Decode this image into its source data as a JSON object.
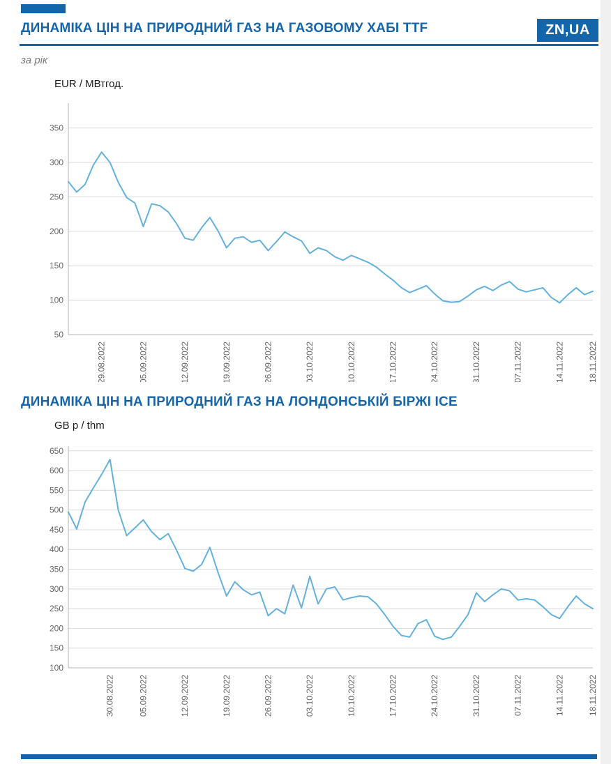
{
  "brand": {
    "logo_text": "ZN,UA",
    "accent_color": "#1565ab",
    "grid_color": "#d9d9d9",
    "axis_color": "#b3b3b3",
    "tick_text_color": "#666666"
  },
  "header": {
    "title": "ДИНАМІКА ЦІН НА ПРИРОДНИЙ ГАЗ НА ГАЗОВОМУ ХАБІ TTF",
    "subtitle": "за рік"
  },
  "section2": {
    "title": "ДИНАМІКА ЦІН НА ПРИРОДНИЙ ГАЗ НА ЛОНДОНСЬКІЙ БІРЖІ ICE"
  },
  "chart_data": [
    {
      "type": "line",
      "title": "ДИНАМІКА ЦІН НА ПРИРОДНИЙ ГАЗ НА ГАЗОВОМУ ХАБІ TTF",
      "subtitle": "за рік",
      "ylabel": "EUR / МВтгод.",
      "xlabel": "",
      "ylim": [
        50,
        386
      ],
      "yticks": [
        50,
        100,
        150,
        200,
        250,
        300,
        350
      ],
      "grid": true,
      "legend": "none",
      "line_color": "#63b1dc",
      "x_tick_labels": [
        "29.08.2022",
        "05.09.2022",
        "12.09.2022",
        "19.09.2022",
        "26.09.2022",
        "03.10.2022",
        "10.10.2022",
        "17.10.2022",
        "24.10.2022",
        "31.10.2022",
        "07.11.2022",
        "14.11.2022",
        "18.11.2022"
      ],
      "x_tick_indices": [
        4,
        9,
        14,
        19,
        24,
        29,
        34,
        39,
        44,
        49,
        54,
        59,
        63
      ],
      "values": [
        272,
        257,
        268,
        296,
        315,
        300,
        271,
        249,
        241,
        207,
        240,
        237,
        228,
        211,
        190,
        187,
        205,
        220,
        200,
        176,
        190,
        192,
        184,
        187,
        172,
        185,
        199,
        192,
        186,
        168,
        176,
        172,
        163,
        158,
        165,
        160,
        155,
        148,
        138,
        129,
        118,
        111,
        116,
        121,
        109,
        99,
        97,
        98,
        106,
        115,
        120,
        114,
        122,
        127,
        116,
        112,
        115,
        118,
        104,
        96,
        108,
        118,
        108,
        113
      ]
    },
    {
      "type": "line",
      "title": "ДИНАМІКА ЦІН НА ПРИРОДНИЙ ГАЗ НА ЛОНДОНСЬКІЙ БІРЖІ ICE",
      "ylabel": "GB p / thm",
      "xlabel": "",
      "ylim": [
        100,
        662
      ],
      "yticks": [
        100,
        150,
        200,
        250,
        300,
        350,
        400,
        450,
        500,
        550,
        600,
        650
      ],
      "grid": true,
      "legend": "none",
      "line_color": "#63b1dc",
      "x_tick_labels": [
        "30.08.2022",
        "05.09.2022",
        "12.09.2022",
        "19.09.2022",
        "26.09.2022",
        "03.10.2022",
        "10.10.2022",
        "17.10.2022",
        "24.10.2022",
        "31.10.2022",
        "07.11.2022",
        "14.11.2022",
        "18.11.2022"
      ],
      "x_tick_indices": [
        5,
        9,
        14,
        19,
        24,
        29,
        34,
        39,
        44,
        49,
        54,
        59,
        63
      ],
      "values": [
        495,
        452,
        520,
        556,
        590,
        628,
        500,
        435,
        455,
        475,
        445,
        425,
        440,
        398,
        352,
        345,
        362,
        405,
        340,
        282,
        318,
        298,
        285,
        292,
        232,
        250,
        237,
        310,
        252,
        332,
        262,
        300,
        305,
        272,
        278,
        282,
        280,
        262,
        235,
        205,
        182,
        178,
        212,
        222,
        180,
        172,
        178,
        205,
        235,
        290,
        268,
        285,
        300,
        295,
        272,
        275,
        272,
        255,
        235,
        225,
        255,
        282,
        262,
        250
      ]
    }
  ]
}
